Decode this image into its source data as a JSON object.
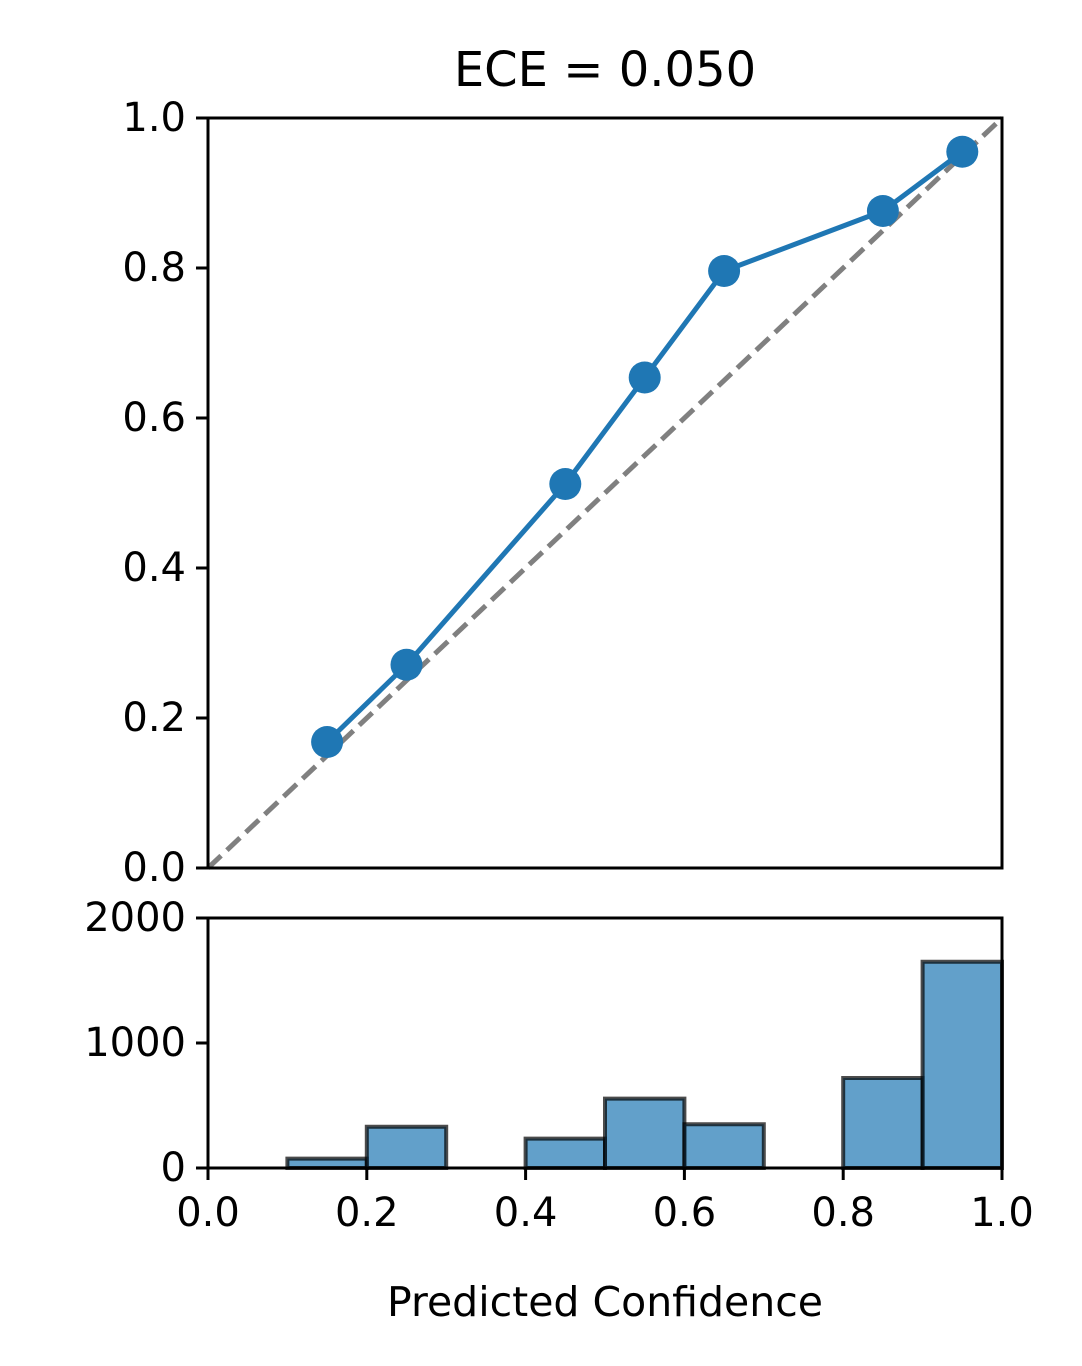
{
  "chart_data": [
    {
      "type": "line",
      "title": "ECE = 0.050",
      "xlabel": "",
      "ylabel": "",
      "xlim": [
        0.0,
        1.0
      ],
      "ylim": [
        0.0,
        1.0
      ],
      "yticks": [
        "0.0",
        "0.2",
        "0.4",
        "0.6",
        "0.8",
        "1.0"
      ],
      "ytick_values": [
        0.0,
        0.2,
        0.4,
        0.6,
        0.8,
        1.0
      ],
      "grid": false,
      "series": [
        {
          "x": [
            0.15,
            0.25,
            0.45,
            0.55,
            0.65,
            0.85,
            0.95
          ],
          "y": [
            0.168,
            0.271,
            0.512,
            0.654,
            0.796,
            0.876,
            0.955
          ],
          "color": "#1f77b4",
          "marker": "circle"
        }
      ],
      "reference_line": {
        "x": [
          0.0,
          1.0
        ],
        "y": [
          0.0,
          1.0
        ],
        "color": "#808080",
        "style": "dashed"
      }
    },
    {
      "type": "bar",
      "title": "",
      "xlabel": "Predicted Confidence",
      "ylabel": "",
      "xlim": [
        0.0,
        1.0
      ],
      "ylim": [
        0,
        2000
      ],
      "xticks": [
        "0.0",
        "0.2",
        "0.4",
        "0.6",
        "0.8",
        "1.0"
      ],
      "xtick_values": [
        0.0,
        0.2,
        0.4,
        0.6,
        0.8,
        1.0
      ],
      "yticks": [
        "0",
        "1000",
        "2000"
      ],
      "ytick_values": [
        0,
        1000,
        2000
      ],
      "grid": false,
      "bin_edges": [
        0.0,
        0.1,
        0.2,
        0.3,
        0.4,
        0.5,
        0.6,
        0.7,
        0.8,
        0.9,
        1.0
      ],
      "values": [
        0,
        75,
        330,
        0,
        235,
        555,
        350,
        0,
        720,
        1650
      ],
      "color": "#1f77b4",
      "edgecolor": "#000000"
    }
  ]
}
